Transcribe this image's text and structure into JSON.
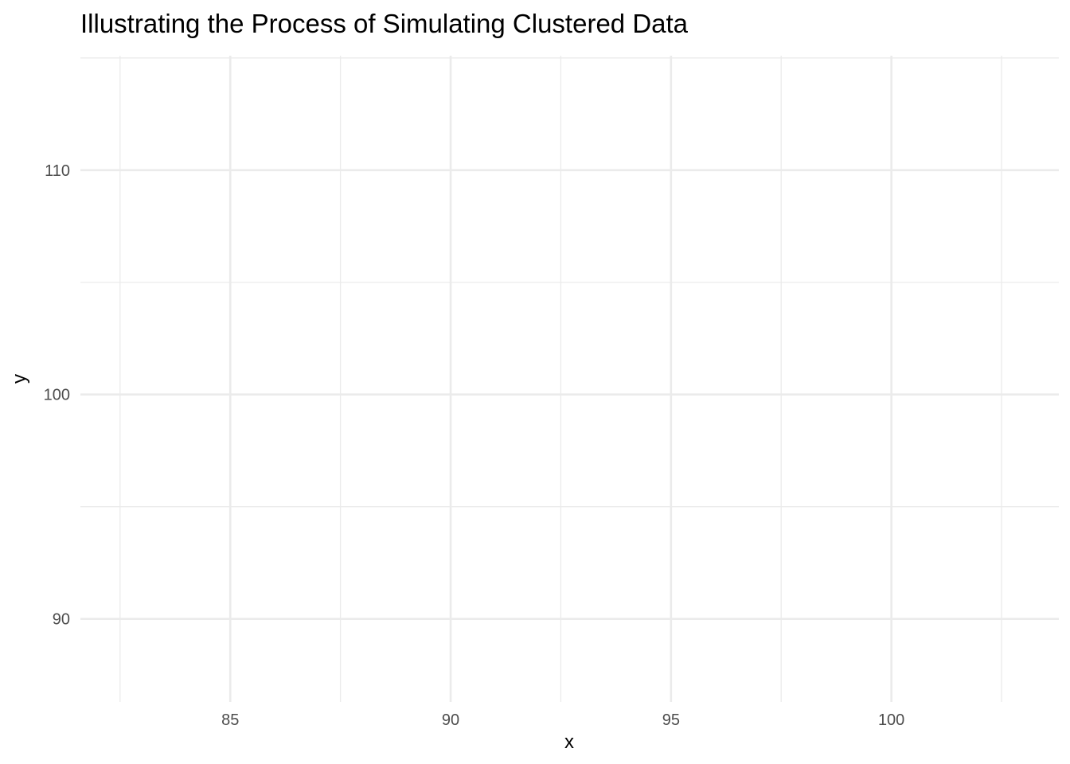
{
  "chart_data": {
    "type": "scatter",
    "title": "Illustrating the Process of Simulating Clustered Data",
    "xlabel": "x",
    "ylabel": "y",
    "xlim": [
      81.6,
      103.8
    ],
    "ylim": [
      86.3,
      115.1
    ],
    "x_ticks": [
      "85",
      "90",
      "95",
      "100"
    ],
    "y_ticks": [
      "90",
      "100",
      "110"
    ],
    "x_tick_values": [
      85,
      90,
      95,
      100
    ],
    "y_tick_values": [
      90,
      100,
      110
    ],
    "x_minor_values": [
      82.5,
      87.5,
      92.5,
      97.5,
      102.5
    ],
    "y_minor_values": [
      95,
      105,
      115
    ],
    "grid": true,
    "legend": "none",
    "series": [],
    "colors": {
      "background": "#ffffff",
      "grid": "#ebebeb",
      "tick_text": "#4d4d4d",
      "title_text": "#000000"
    }
  }
}
